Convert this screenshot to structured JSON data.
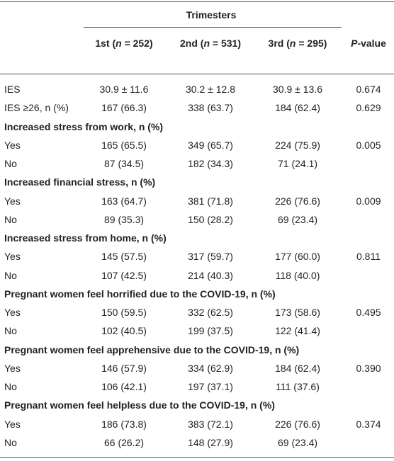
{
  "header": {
    "group": "Trimesters",
    "columns": [
      [
        "1st (",
        "n",
        " = 252)"
      ],
      [
        "2nd (",
        "n",
        " = 531)"
      ],
      [
        "3rd (",
        "n",
        " = 295)"
      ]
    ],
    "p_value": [
      "P",
      "-value"
    ]
  },
  "rows": [
    {
      "label": "IES",
      "cells": [
        "30.9 ± 11.6",
        "30.2 ± 12.8",
        "30.9 ± 13.6"
      ],
      "p": "0.674"
    },
    {
      "label": "IES ≥26, n (%)",
      "cells": [
        "167 (66.3)",
        "338 (63.7)",
        "184 (62.4)"
      ],
      "p": "0.629"
    },
    {
      "section": "Increased stress from work, n (%)"
    },
    {
      "label": "Yes",
      "cells": [
        "165 (65.5)",
        "349 (65.7)",
        "224 (75.9)"
      ],
      "p": "0.005"
    },
    {
      "label": "No",
      "cells": [
        "87 (34.5)",
        "182 (34.3)",
        "71 (24.1)"
      ]
    },
    {
      "section": "Increased financial stress, n (%)"
    },
    {
      "label": "Yes",
      "cells": [
        "163 (64.7)",
        "381 (71.8)",
        "226 (76.6)"
      ],
      "p": "0.009"
    },
    {
      "label": "No",
      "cells": [
        "89 (35.3)",
        "150 (28.2)",
        "69 (23.4)"
      ]
    },
    {
      "section": "Increased stress from home, n (%)"
    },
    {
      "label": "Yes",
      "cells": [
        "145 (57.5)",
        "317 (59.7)",
        "177 (60.0)"
      ],
      "p": "0.811"
    },
    {
      "label": "No",
      "cells": [
        "107 (42.5)",
        "214 (40.3)",
        "118 (40.0)"
      ]
    },
    {
      "section": "Pregnant women feel horrified due to the COVID-19, n (%)"
    },
    {
      "label": "Yes",
      "cells": [
        "150 (59.5)",
        "332 (62.5)",
        "173 (58.6)"
      ],
      "p": "0.495"
    },
    {
      "label": "No",
      "cells": [
        "102 (40.5)",
        "199 (37.5)",
        "122 (41.4)"
      ]
    },
    {
      "section": "Pregnant women feel apprehensive due to the COVID-19, n (%)"
    },
    {
      "label": "Yes",
      "cells": [
        "146 (57.9)",
        "334 (62.9)",
        "184 (62.4)"
      ],
      "p": "0.390"
    },
    {
      "label": "No",
      "cells": [
        "106 (42.1)",
        "197 (37.1)",
        "111 (37.6)"
      ]
    },
    {
      "section": "Pregnant women feel helpless due to the COVID-19, n (%)"
    },
    {
      "label": "Yes",
      "cells": [
        "186 (73.8)",
        "383 (72.1)",
        "226 (76.6)"
      ],
      "p": "0.374"
    },
    {
      "label": "No",
      "cells": [
        "66 (26.2)",
        "148 (27.9)",
        "69 (23.4)"
      ]
    }
  ]
}
